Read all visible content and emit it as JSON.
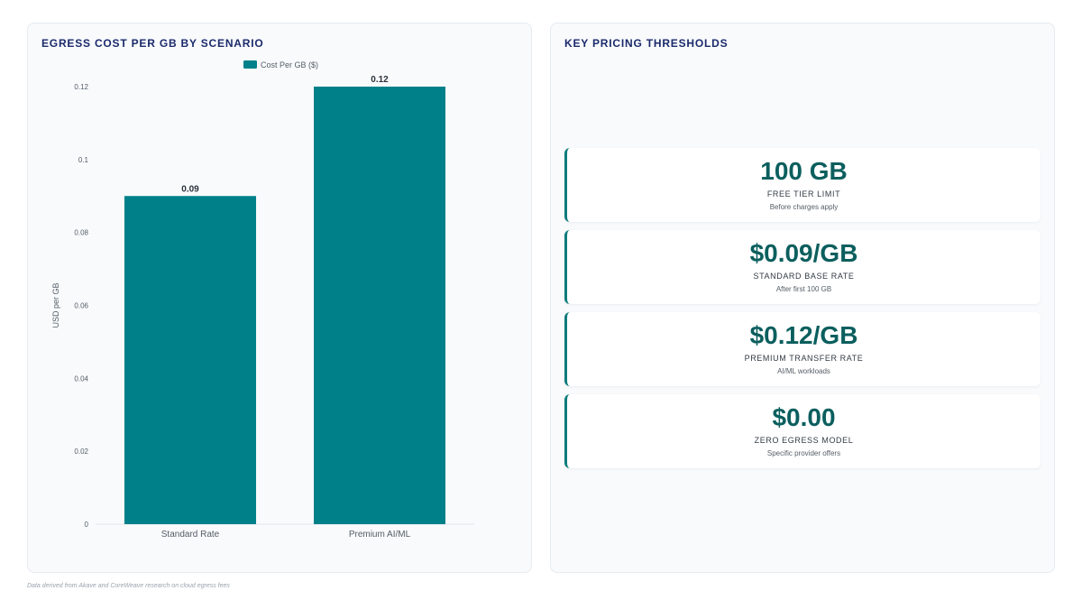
{
  "chart_panel": {
    "title": "EGRESS COST PER GB BY SCENARIO"
  },
  "kpi_panel": {
    "title": "KEY PRICING THRESHOLDS",
    "cards": [
      {
        "value": "100 GB",
        "label": "FREE TIER LIMIT",
        "sub": "Before charges apply"
      },
      {
        "value": "$0.09/GB",
        "label": "STANDARD BASE RATE",
        "sub": "After first 100 GB"
      },
      {
        "value": "$0.12/GB",
        "label": "PREMIUM TRANSFER RATE",
        "sub": "AI/ML workloads"
      },
      {
        "value": "$0.00",
        "label": "ZERO EGRESS MODEL",
        "sub": "Specific provider offers"
      }
    ]
  },
  "footnote": "Data derived from Akave and CoreWeave research on cloud egress fees",
  "chart_data": {
    "type": "bar",
    "title": "EGRESS COST PER GB BY SCENARIO",
    "categories": [
      "Standard Rate",
      "Premium AI/ML"
    ],
    "series": [
      {
        "name": "Cost Per GB ($)",
        "values": [
          0.09,
          0.12
        ],
        "color": "#00818a"
      }
    ],
    "data_labels": [
      "0.09",
      "0.12"
    ],
    "xlabel": "",
    "ylabel": "USD per GB",
    "ylim": [
      0,
      0.12
    ],
    "yticks": [
      0,
      0.02,
      0.04,
      0.06,
      0.08,
      0.1,
      0.12
    ],
    "ytick_labels": [
      "0",
      "0.02",
      "0.04",
      "0.06",
      "0.08",
      "0.1",
      "0.12"
    ],
    "grid": false,
    "legend_position": "top-center"
  }
}
